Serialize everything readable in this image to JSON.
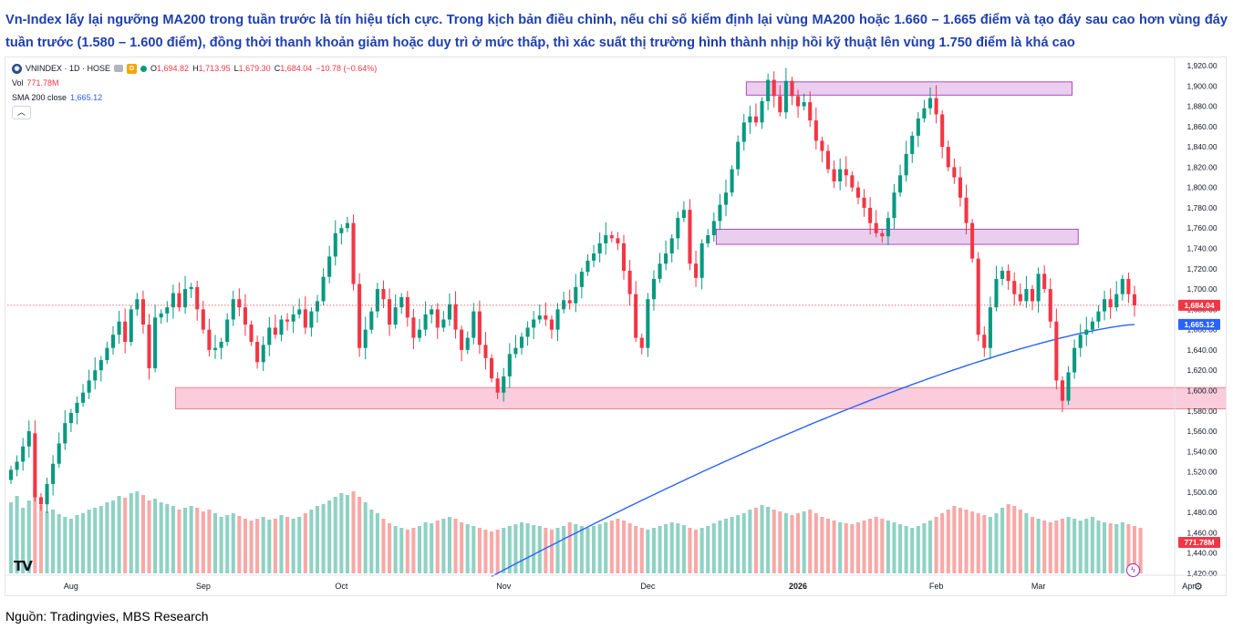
{
  "headline": "Vn-Index lấy lại ngưỡng MA200 trong tuần trước là tín hiệu tích cực. Trong kịch bản điều chỉnh, nếu chỉ số kiểm định lại vùng MA200 hoặc 1.660 – 1.665 điểm và tạo đáy sau cao hơn vùng đáy tuần trước (1.580 – 1.600 điểm), đồng thời thanh khoản giảm hoặc duy trì ở mức thấp, thì xác suất thị trường hình thành nhịp hồi kỹ thuật lên vùng 1.750 điểm là khá cao",
  "source": "Nguồn: Tradingvies, MBS Research",
  "legend": {
    "symbol": "VNINDEX · 1D · HOSE",
    "symbol_icon": "globe-icon",
    "interval_badge": "D",
    "open_k": "O",
    "open_v": "1,694.82",
    "high_k": "H",
    "high_v": "1,713.95",
    "low_k": "L",
    "low_v": "1,679.30",
    "close_k": "C",
    "close_v": "1,684.04",
    "change_v": "−10.78 (−0.64%)",
    "vol_label": "Vol",
    "vol_v": "771.78M",
    "sma_label": "SMA 200 close",
    "sma_v": "1,665.12",
    "collapse_icon": "chevron-up-icon"
  },
  "logo": "TV",
  "chart_data": {
    "type": "candlestick",
    "symbol": "VNINDEX",
    "interval": "1D",
    "exchange": "HOSE",
    "y_range": [
      1420,
      1920
    ],
    "y_ticks": [
      "1,920.00",
      "1,900.00",
      "1,880.00",
      "1,860.00",
      "1,840.00",
      "1,820.00",
      "1,800.00",
      "1,780.00",
      "1,760.00",
      "1,740.00",
      "1,720.00",
      "1,700.00",
      "1,680.00",
      "1,660.00",
      "1,640.00",
      "1,620.00",
      "1,600.00",
      "1,580.00",
      "1,560.00",
      "1,540.00",
      "1,520.00",
      "1,500.00",
      "1,480.00",
      "1,460.00",
      "1,440.00",
      "1,420.00"
    ],
    "x_labels": [
      {
        "label": "Aug",
        "bar": 10
      },
      {
        "label": "Sep",
        "bar": 32
      },
      {
        "label": "Oct",
        "bar": 55
      },
      {
        "label": "Nov",
        "bar": 82
      },
      {
        "label": "Dec",
        "bar": 106
      },
      {
        "label": "2026",
        "bar": 131
      },
      {
        "label": "Feb",
        "bar": 154
      },
      {
        "label": "Mar",
        "bar": 171
      },
      {
        "label": "Apr",
        "bar": 196
      }
    ],
    "closes": [
      1522,
      1530,
      1545,
      1560,
      1495,
      1488,
      1508,
      1528,
      1548,
      1568,
      1578,
      1588,
      1598,
      1610,
      1620,
      1630,
      1642,
      1655,
      1668,
      1648,
      1680,
      1690,
      1665,
      1622,
      1672,
      1676,
      1682,
      1696,
      1682,
      1700,
      1702,
      1680,
      1660,
      1640,
      1642,
      1648,
      1670,
      1690,
      1682,
      1665,
      1648,
      1628,
      1645,
      1662,
      1655,
      1670,
      1668,
      1675,
      1680,
      1662,
      1678,
      1688,
      1712,
      1732,
      1755,
      1760,
      1765,
      1705,
      1642,
      1660,
      1678,
      1700,
      1690,
      1665,
      1682,
      1692,
      1672,
      1652,
      1660,
      1675,
      1680,
      1662,
      1670,
      1685,
      1660,
      1640,
      1652,
      1678,
      1645,
      1632,
      1612,
      1598,
      1614,
      1636,
      1642,
      1653,
      1662,
      1670,
      1674,
      1670,
      1660,
      1680,
      1689,
      1686,
      1702,
      1717,
      1728,
      1735,
      1745,
      1753,
      1750,
      1745,
      1718,
      1695,
      1652,
      1642,
      1690,
      1710,
      1725,
      1735,
      1750,
      1770,
      1778,
      1725,
      1711,
      1745,
      1753,
      1767,
      1783,
      1795,
      1818,
      1845,
      1864,
      1870,
      1864,
      1885,
      1906,
      1890,
      1874,
      1905,
      1890,
      1880,
      1884,
      1866,
      1846,
      1836,
      1818,
      1806,
      1818,
      1812,
      1800,
      1790,
      1780,
      1765,
      1755,
      1752,
      1770,
      1795,
      1812,
      1833,
      1851,
      1868,
      1878,
      1888,
      1872,
      1840,
      1820,
      1810,
      1790,
      1765,
      1730,
      1655,
      1642,
      1682,
      1710,
      1718,
      1708,
      1695,
      1688,
      1700,
      1688,
      1715,
      1700,
      1668,
      1610,
      1590,
      1618,
      1642,
      1655,
      1660,
      1668,
      1678,
      1690,
      1682,
      1695,
      1710,
      1695,
      1684
    ],
    "opens": [
      1512,
      1522,
      1530,
      1545,
      1558,
      1495,
      1488,
      1508,
      1528,
      1548,
      1568,
      1578,
      1588,
      1598,
      1610,
      1620,
      1630,
      1642,
      1655,
      1668,
      1648,
      1680,
      1690,
      1665,
      1622,
      1672,
      1676,
      1682,
      1696,
      1682,
      1700,
      1702,
      1680,
      1660,
      1640,
      1642,
      1648,
      1670,
      1690,
      1682,
      1665,
      1648,
      1628,
      1645,
      1662,
      1655,
      1670,
      1668,
      1675,
      1680,
      1662,
      1678,
      1688,
      1712,
      1732,
      1755,
      1760,
      1765,
      1705,
      1642,
      1660,
      1678,
      1700,
      1690,
      1665,
      1682,
      1692,
      1672,
      1652,
      1660,
      1675,
      1680,
      1662,
      1670,
      1685,
      1660,
      1640,
      1652,
      1678,
      1645,
      1632,
      1612,
      1598,
      1614,
      1636,
      1642,
      1653,
      1662,
      1670,
      1674,
      1670,
      1660,
      1680,
      1689,
      1686,
      1702,
      1717,
      1728,
      1735,
      1745,
      1753,
      1750,
      1745,
      1718,
      1695,
      1652,
      1642,
      1690,
      1710,
      1725,
      1735,
      1750,
      1770,
      1778,
      1725,
      1711,
      1745,
      1753,
      1767,
      1783,
      1795,
      1818,
      1845,
      1864,
      1870,
      1864,
      1885,
      1906,
      1890,
      1874,
      1905,
      1890,
      1880,
      1884,
      1866,
      1846,
      1836,
      1818,
      1806,
      1818,
      1812,
      1800,
      1790,
      1780,
      1765,
      1755,
      1752,
      1770,
      1795,
      1812,
      1833,
      1851,
      1868,
      1878,
      1888,
      1872,
      1840,
      1820,
      1810,
      1790,
      1765,
      1730,
      1655,
      1642,
      1682,
      1710,
      1718,
      1708,
      1695,
      1688,
      1700,
      1688,
      1715,
      1700,
      1668,
      1610,
      1590,
      1618,
      1642,
      1655,
      1660,
      1668,
      1678,
      1690,
      1682,
      1695,
      1710,
      1694.82
    ],
    "volume_relative": [
      0.78,
      0.85,
      0.72,
      0.8,
      0.92,
      0.75,
      0.68,
      0.7,
      0.65,
      0.62,
      0.6,
      0.64,
      0.66,
      0.7,
      0.72,
      0.74,
      0.78,
      0.8,
      0.85,
      0.83,
      0.88,
      0.9,
      0.86,
      0.8,
      0.82,
      0.78,
      0.76,
      0.74,
      0.7,
      0.72,
      0.74,
      0.72,
      0.68,
      0.7,
      0.66,
      0.62,
      0.64,
      0.66,
      0.63,
      0.6,
      0.58,
      0.6,
      0.62,
      0.59,
      0.6,
      0.64,
      0.62,
      0.6,
      0.62,
      0.66,
      0.7,
      0.74,
      0.76,
      0.8,
      0.84,
      0.88,
      0.86,
      0.9,
      0.84,
      0.78,
      0.7,
      0.66,
      0.6,
      0.55,
      0.52,
      0.5,
      0.48,
      0.5,
      0.52,
      0.56,
      0.55,
      0.58,
      0.6,
      0.62,
      0.6,
      0.56,
      0.54,
      0.52,
      0.5,
      0.48,
      0.46,
      0.48,
      0.5,
      0.52,
      0.54,
      0.56,
      0.55,
      0.53,
      0.52,
      0.5,
      0.48,
      0.5,
      0.52,
      0.56,
      0.54,
      0.52,
      0.5,
      0.52,
      0.54,
      0.56,
      0.58,
      0.6,
      0.58,
      0.55,
      0.52,
      0.5,
      0.48,
      0.5,
      0.52,
      0.54,
      0.56,
      0.55,
      0.53,
      0.5,
      0.48,
      0.5,
      0.52,
      0.55,
      0.58,
      0.6,
      0.62,
      0.64,
      0.66,
      0.7,
      0.72,
      0.75,
      0.73,
      0.7,
      0.68,
      0.66,
      0.64,
      0.66,
      0.68,
      0.7,
      0.66,
      0.62,
      0.6,
      0.58,
      0.56,
      0.55,
      0.54,
      0.56,
      0.58,
      0.6,
      0.62,
      0.6,
      0.58,
      0.56,
      0.54,
      0.52,
      0.5,
      0.52,
      0.55,
      0.58,
      0.62,
      0.66,
      0.7,
      0.74,
      0.72,
      0.7,
      0.68,
      0.66,
      0.64,
      0.62,
      0.66,
      0.72,
      0.76,
      0.74,
      0.7,
      0.66,
      0.62,
      0.6,
      0.58,
      0.56,
      0.58,
      0.6,
      0.62,
      0.6,
      0.58,
      0.6,
      0.62,
      0.58,
      0.56,
      0.55,
      0.54,
      0.56,
      0.54,
      0.52,
      0.5
    ],
    "sma200": {
      "label": "SMA 200 close",
      "start_bar": 80,
      "start_value": 1417,
      "end_value": 1665.12
    },
    "zones": [
      {
        "color": "#e1bee7",
        "from_bar": 123,
        "to_bar": 176,
        "y_low": 1891,
        "y_high": 1904
      },
      {
        "color": "#e1bee7",
        "from_bar": 118,
        "to_bar": 177,
        "y_low": 1744,
        "y_high": 1759
      },
      {
        "color": "#f8bbd0",
        "from_bar": 28,
        "to_bar": 205,
        "y_low": 1582,
        "y_high": 1603
      }
    ],
    "last_price": {
      "value": 1684.04,
      "label": "1,684.04",
      "color": "#f23645"
    },
    "sma_last": {
      "value": 1665.12,
      "label": "1,665.12",
      "color": "#2962ff"
    },
    "vol_last": {
      "label": "771.78M",
      "color": "#f23645"
    },
    "colors": {
      "up": "#089981",
      "down": "#f23645",
      "vol_up": "#8fd2c4",
      "vol_down": "#f7a9a7",
      "sma": "#2962ff"
    }
  }
}
